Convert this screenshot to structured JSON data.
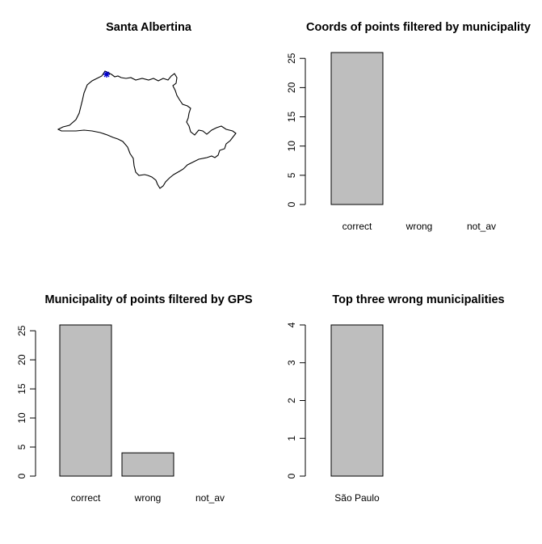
{
  "panels": {
    "map": {
      "title": "Santa Albertina",
      "marker_color": "#0000cc"
    },
    "coords": {
      "title": "Coords of points filtered by municipality"
    },
    "gps": {
      "title": "Municipality of points filtered by GPS"
    },
    "top": {
      "title": "Top three wrong municipalities"
    }
  },
  "chart_data": [
    {
      "type": "map",
      "title": "Santa Albertina",
      "marker_color": "#0000cc"
    },
    {
      "type": "bar",
      "title": "Coords of points filtered by municipality",
      "categories": [
        "correct",
        "wrong",
        "not_av"
      ],
      "values": [
        26,
        0,
        0
      ],
      "ylim": [
        0,
        26
      ],
      "yticks": [
        0,
        5,
        10,
        15,
        20,
        25
      ],
      "bar_color": "#bebebe"
    },
    {
      "type": "bar",
      "title": "Municipality of points filtered by GPS",
      "categories": [
        "correct",
        "wrong",
        "not_av"
      ],
      "values": [
        26,
        4,
        0
      ],
      "ylim": [
        0,
        26
      ],
      "yticks": [
        0,
        5,
        10,
        15,
        20,
        25
      ],
      "bar_color": "#bebebe"
    },
    {
      "type": "bar",
      "title": "Top three wrong municipalities",
      "categories": [
        "São Paulo"
      ],
      "values": [
        4
      ],
      "ylim": [
        0,
        4
      ],
      "yticks": [
        0,
        1,
        2,
        3,
        4
      ],
      "bar_color": "#bebebe"
    }
  ]
}
